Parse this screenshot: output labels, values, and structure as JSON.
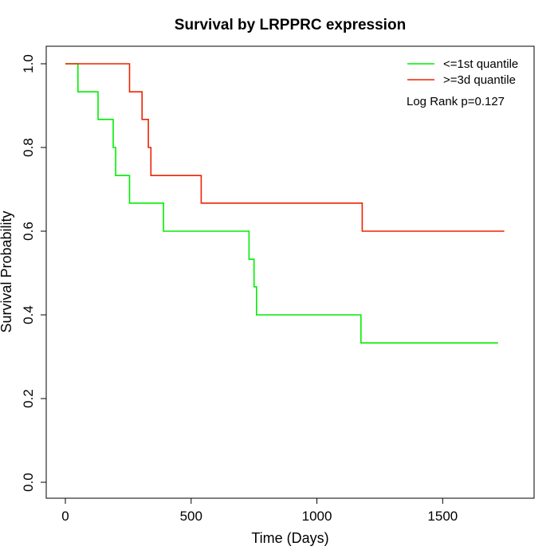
{
  "chart_data": {
    "type": "line",
    "title": "Survival by LRPPRC expression",
    "xlabel": "Time (Days)",
    "ylabel": "Survival Probability",
    "xlim": [
      0,
      1800
    ],
    "ylim": [
      0,
      1.0
    ],
    "x_ticks": [
      0,
      500,
      1000,
      1500
    ],
    "x_tick_labels": [
      "0",
      "500",
      "1000",
      "1500"
    ],
    "y_ticks": [
      0,
      0.2,
      0.4,
      0.6,
      0.8,
      1.0
    ],
    "y_tick_labels": [
      "0.0",
      "0.2",
      "0.4",
      "0.6",
      "0.8",
      "1.0"
    ],
    "grid": false,
    "legend_position": "top-right",
    "annotation": "Log Rank p=0.127",
    "series": [
      {
        "name": "<=1st quantile",
        "color": "#00ee00",
        "step": true,
        "x": [
          0,
          50,
          50,
          130,
          130,
          190,
          190,
          200,
          200,
          255,
          255,
          390,
          390,
          730,
          730,
          750,
          750,
          760,
          760,
          1175,
          1175,
          1720
        ],
        "y": [
          1.0,
          1.0,
          0.933,
          0.933,
          0.867,
          0.867,
          0.8,
          0.8,
          0.733,
          0.733,
          0.667,
          0.667,
          0.6,
          0.6,
          0.533,
          0.533,
          0.467,
          0.467,
          0.4,
          0.4,
          0.333,
          0.333
        ]
      },
      {
        "name": ">=3d quantile",
        "color": "#ee2200",
        "step": true,
        "x": [
          0,
          255,
          255,
          305,
          305,
          330,
          330,
          340,
          340,
          540,
          540,
          1180,
          1180,
          1745
        ],
        "y": [
          1.0,
          1.0,
          0.933,
          0.933,
          0.867,
          0.867,
          0.8,
          0.8,
          0.733,
          0.733,
          0.667,
          0.667,
          0.6,
          0.6
        ]
      }
    ]
  }
}
